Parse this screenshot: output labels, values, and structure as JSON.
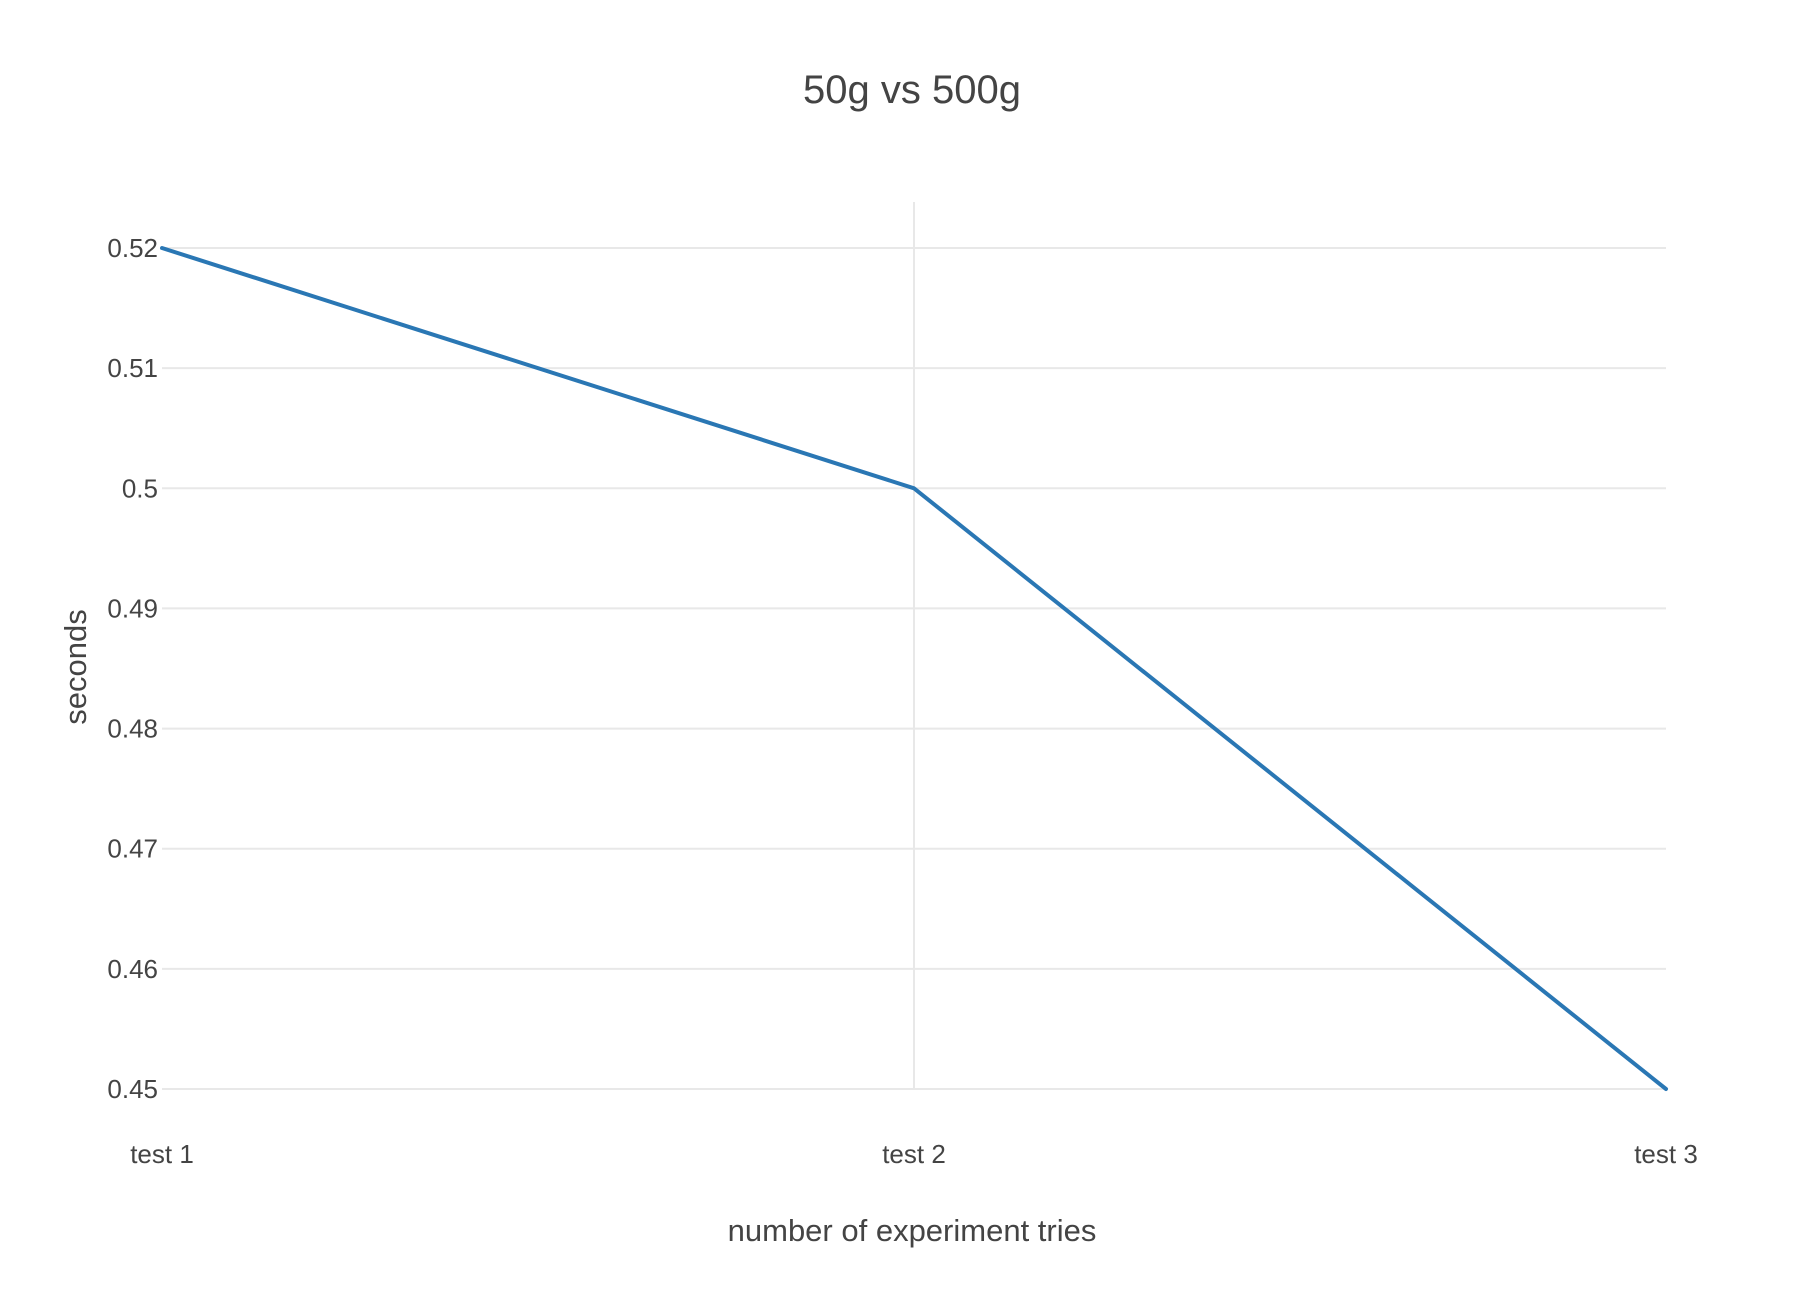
{
  "chart_data": {
    "type": "line",
    "title": "50g vs 500g",
    "xlabel": "number of experiment tries",
    "ylabel": "seconds",
    "categories": [
      "test 1",
      "test 2",
      "test 3"
    ],
    "series": [
      {
        "values": [
          0.52,
          0.5,
          0.45
        ],
        "color": "#2a77b4"
      }
    ],
    "ylim": [
      0.45,
      0.52
    ],
    "yticks": [
      "0.52",
      "0.51",
      "0.5",
      "0.49",
      "0.48",
      "0.47",
      "0.46",
      "0.45"
    ],
    "grid": true,
    "legend": "none"
  }
}
